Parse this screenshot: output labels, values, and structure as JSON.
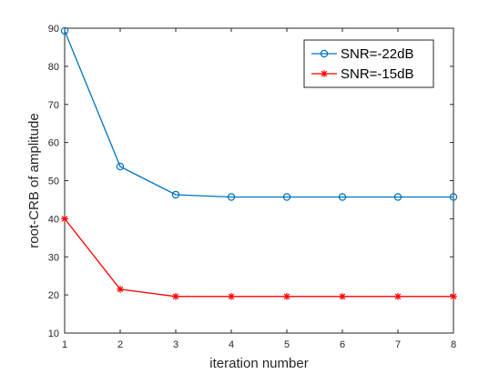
{
  "chart_data": {
    "type": "line",
    "xlabel": "iteration number",
    "ylabel": "root-CRB of amplitude",
    "xlim": [
      1,
      8
    ],
    "ylim": [
      10,
      90
    ],
    "xticks": [
      1,
      2,
      3,
      4,
      5,
      6,
      7,
      8
    ],
    "yticks": [
      10,
      20,
      30,
      40,
      50,
      60,
      70,
      80,
      90
    ],
    "grid": false,
    "legend_position": "top-right",
    "x": [
      1,
      2,
      3,
      4,
      5,
      6,
      7,
      8
    ],
    "series": [
      {
        "name": "SNR=-22dB",
        "color": "#0072BD",
        "marker": "circle",
        "values": [
          89.3,
          53.7,
          46.3,
          45.7,
          45.7,
          45.7,
          45.7,
          45.7
        ]
      },
      {
        "name": "SNR=-15dB",
        "color": "#FF0000",
        "marker": "asterisk",
        "values": [
          40.0,
          21.5,
          19.6,
          19.6,
          19.6,
          19.6,
          19.6,
          19.6
        ]
      }
    ]
  }
}
